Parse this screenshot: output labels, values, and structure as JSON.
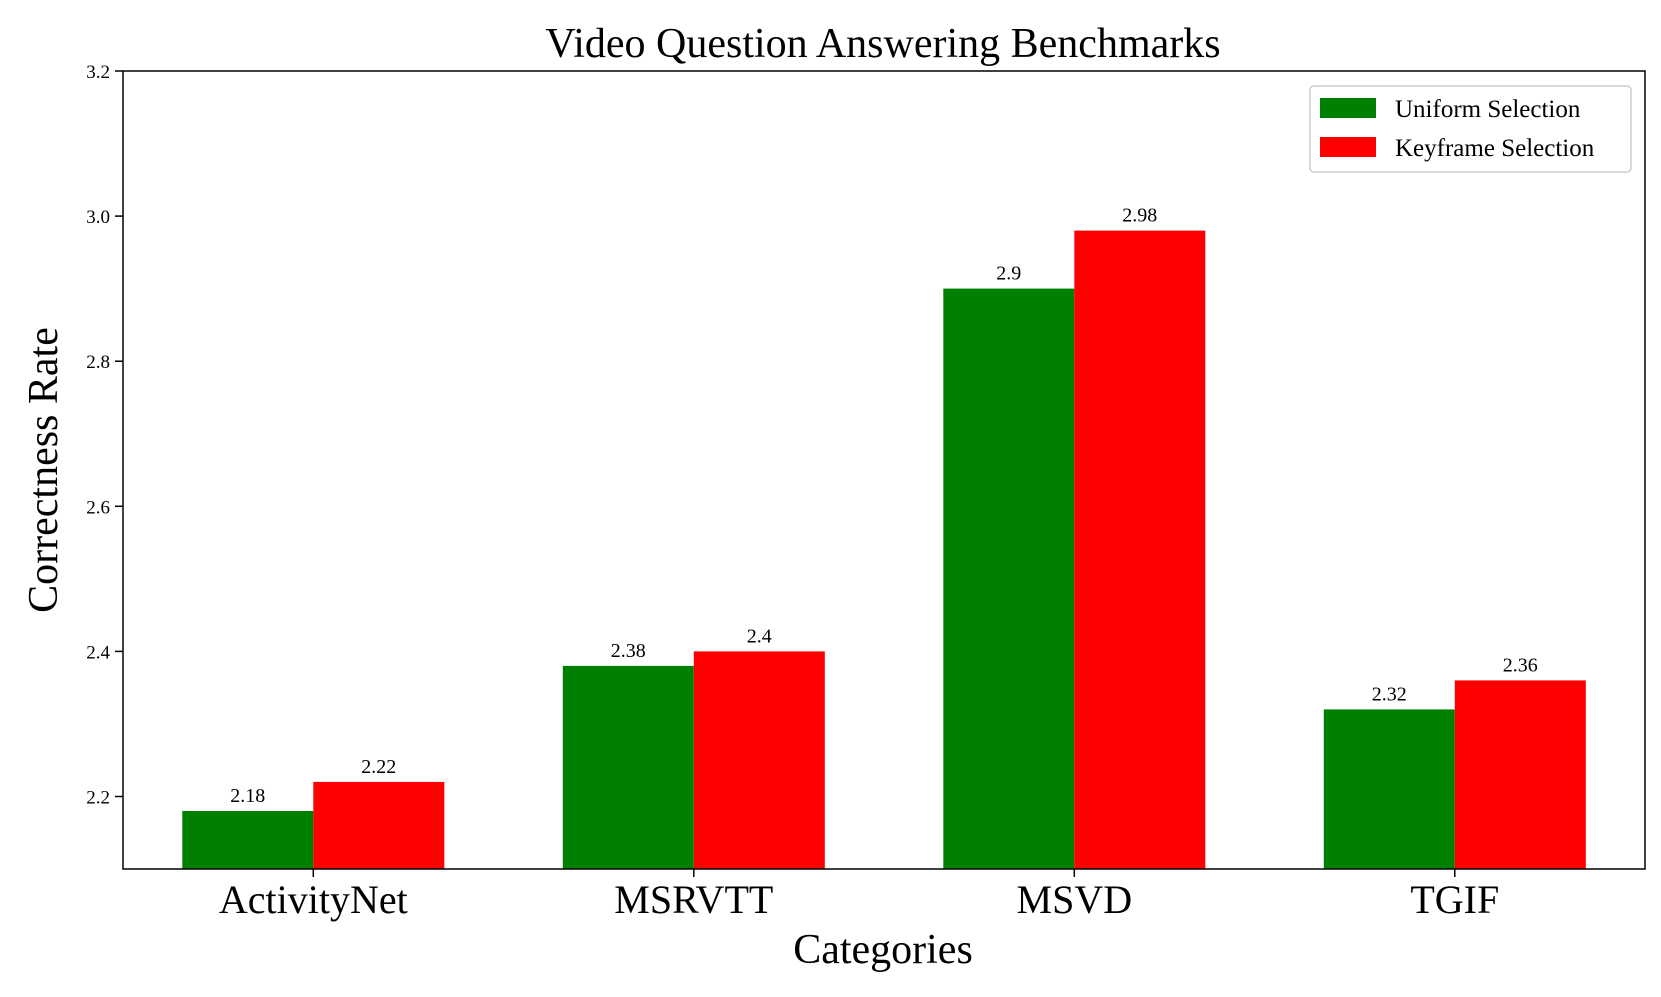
{
  "chart_data": {
    "type": "bar",
    "title": "Video Question Answering Benchmarks",
    "xlabel": "Categories",
    "ylabel": "Correctness Rate",
    "ylim": [
      2.1,
      3.2
    ],
    "yticks": [
      "2.2",
      "2.4",
      "2.6",
      "2.8",
      "3.0",
      "3.2"
    ],
    "categories": [
      "ActivityNet",
      "MSRVTT",
      "MSVD",
      "TGIF"
    ],
    "series": [
      {
        "name": "Uniform Selection",
        "color": "#008000",
        "values": [
          2.18,
          2.38,
          2.9,
          2.32
        ],
        "labels": [
          "2.18",
          "2.38",
          "2.9",
          "2.32"
        ]
      },
      {
        "name": "Keyframe Selection",
        "color": "#ff0000",
        "values": [
          2.22,
          2.4,
          2.98,
          2.36
        ],
        "labels": [
          "2.22",
          "2.4",
          "2.98",
          "2.36"
        ]
      }
    ],
    "legend_position": "top-right",
    "grid": false
  }
}
